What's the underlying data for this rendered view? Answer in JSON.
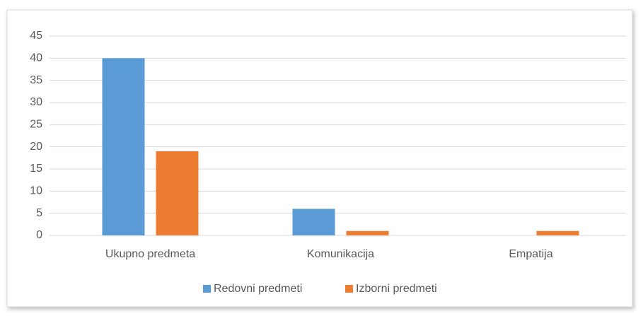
{
  "chart_data": {
    "type": "bar",
    "categories": [
      "Ukupno predmeta",
      "Komunikacija",
      "Empatija"
    ],
    "series": [
      {
        "name": "Redovni predmeti",
        "color": "#5b9bd5",
        "values": [
          40,
          6,
          0
        ]
      },
      {
        "name": "Izborni predmeti",
        "color": "#ed7d31",
        "values": [
          19,
          1,
          1
        ]
      }
    ],
    "ylim": [
      0,
      45
    ],
    "yticks": [
      0,
      5,
      10,
      15,
      20,
      25,
      30,
      35,
      40,
      45
    ],
    "grid": true,
    "legend": "bottom"
  }
}
